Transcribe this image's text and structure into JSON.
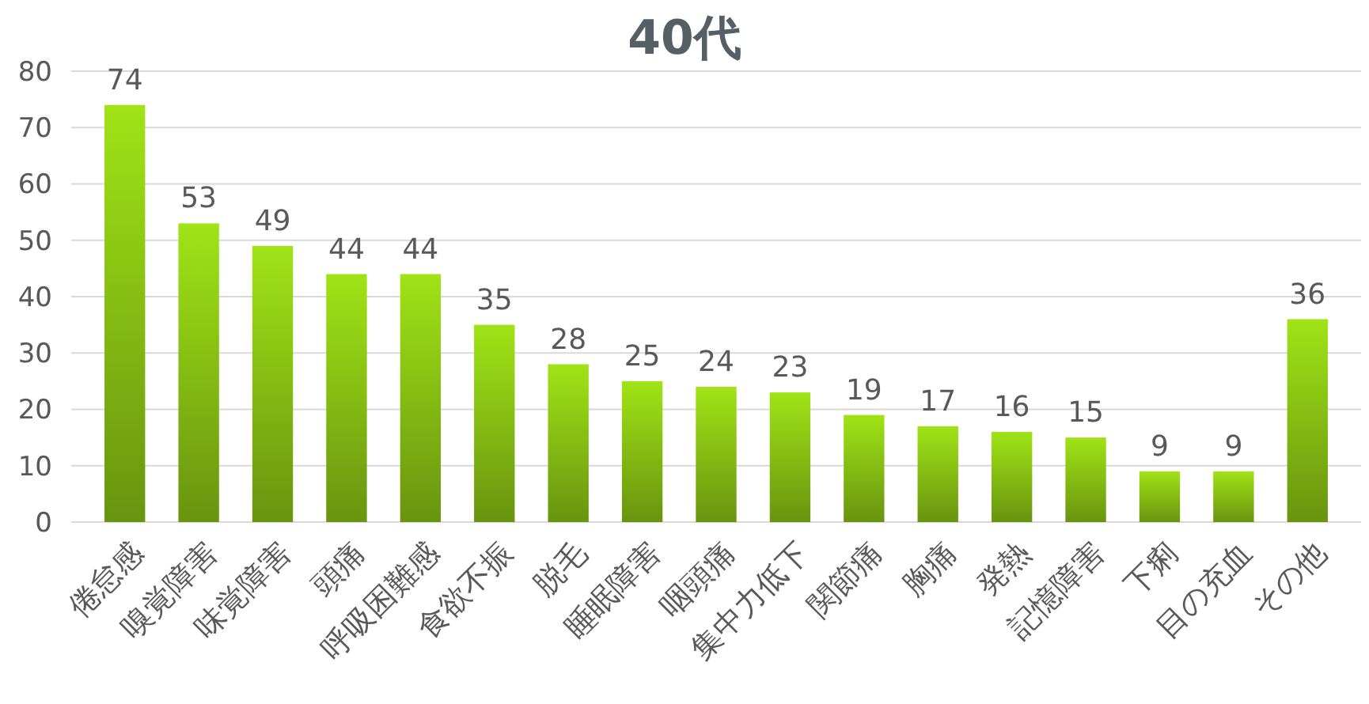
{
  "chart_data": {
    "type": "bar",
    "title": "40代",
    "categories": [
      "倦怠感",
      "嗅覚障害",
      "味覚障害",
      "頭痛",
      "呼吸困難感",
      "食欲不振",
      "脱毛",
      "睡眠障害",
      "咽頭痛",
      "集中力低下",
      "関節痛",
      "胸痛",
      "発熱",
      "記憶障害",
      "下痢",
      "目の充血",
      "その他"
    ],
    "values": [
      74,
      53,
      49,
      44,
      44,
      35,
      28,
      25,
      24,
      23,
      19,
      17,
      16,
      15,
      9,
      9,
      36
    ],
    "color": "#90cc14",
    "ylim": [
      0,
      80
    ],
    "yticks": [
      0,
      10,
      20,
      30,
      40,
      50,
      60,
      70,
      80
    ],
    "grid": "y",
    "data_labels": true
  }
}
